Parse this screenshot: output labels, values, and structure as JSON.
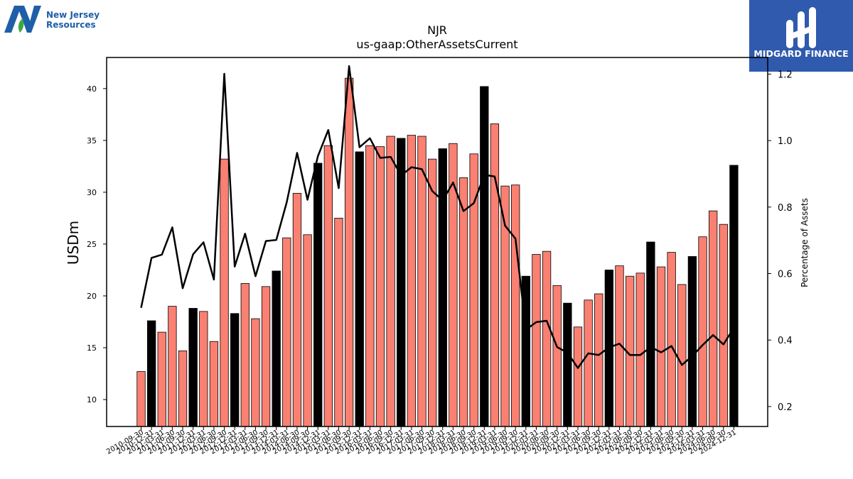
{
  "logos": {
    "left_line1": "New Jersey",
    "left_line2": "Resources",
    "right_text": "MIDGARD FINANCE"
  },
  "colors": {
    "bar_default": "#fa8072",
    "bar_q4": "#000000",
    "line": "#000000",
    "left_logo_blue": "#1f5fa8",
    "right_logo_bg": "#2f5aad"
  },
  "chart_data": {
    "type": "bar",
    "title": "NJR",
    "subtitle": "us-gaap:OtherAssetsCurrent",
    "ylabel": "USDm",
    "y2label": "Percentage of Assets",
    "ylim": [
      7.4,
      43.0
    ],
    "y2lim": [
      0.14,
      1.25
    ],
    "yticks": [
      10,
      15,
      20,
      25,
      30,
      35,
      40
    ],
    "y2ticks": [
      0.2,
      0.4,
      0.6,
      0.8,
      1.0,
      1.2
    ],
    "grid": false,
    "categories": [
      "2010-09-30",
      "2010-12-31",
      "2011-03-31",
      "2011-06-30",
      "2011-09-30",
      "2011-12-31",
      "2012-03-31",
      "2012-06-30",
      "2012-09-30",
      "2012-12-31",
      "2013-03-31",
      "2013-06-30",
      "2013-09-30",
      "2013-12-31",
      "2014-03-31",
      "2014-06-30",
      "2014-09-30",
      "2014-12-31",
      "2015-03-31",
      "2015-06-30",
      "2015-09-30",
      "2015-12-31",
      "2016-03-31",
      "2016-06-30",
      "2016-09-30",
      "2016-12-31",
      "2017-03-31",
      "2017-06-30",
      "2017-09-30",
      "2017-12-31",
      "2018-03-31",
      "2018-06-30",
      "2018-09-30",
      "2018-12-31",
      "2019-03-31",
      "2019-06-30",
      "2019-09-30",
      "2019-12-31",
      "2020-03-31",
      "2020-06-30",
      "2020-09-30",
      "2020-12-31",
      "2021-03-31",
      "2021-06-30",
      "2021-09-30",
      "2021-12-31",
      "2022-03-31",
      "2022-06-30",
      "2022-09-30",
      "2022-12-31",
      "2023-03-31",
      "2023-06-30",
      "2023-09-30",
      "2023-12-31",
      "2024-03-31",
      "2024-06-30",
      "2024-09-30",
      "2024-12-31"
    ],
    "series": [
      {
        "values": [
          12.7,
          17.6,
          16.5,
          19.0,
          14.7,
          18.8,
          18.5,
          15.6,
          33.2,
          18.3,
          21.2,
          17.8,
          20.9,
          22.4,
          25.6,
          29.9,
          25.9,
          32.8,
          34.5,
          27.5,
          41.0,
          33.9,
          34.5,
          34.4,
          35.4,
          35.2,
          35.5,
          35.4,
          33.2,
          34.2,
          34.7,
          31.4,
          33.7,
          40.2,
          36.6,
          30.6,
          30.7,
          21.9,
          24.0,
          24.3,
          21.0,
          19.3,
          17.0,
          19.6,
          20.2,
          22.5,
          22.9,
          21.9,
          22.2,
          25.2,
          22.8,
          24.2,
          21.1,
          23.8,
          25.7,
          28.2,
          26.9,
          32.6
        ],
        "highlight": [
          false,
          true,
          false,
          false,
          false,
          true,
          false,
          false,
          false,
          true,
          false,
          false,
          false,
          true,
          false,
          false,
          false,
          true,
          false,
          false,
          false,
          true,
          false,
          false,
          false,
          true,
          false,
          false,
          false,
          true,
          false,
          false,
          false,
          true,
          false,
          false,
          false,
          true,
          false,
          false,
          false,
          true,
          false,
          false,
          false,
          true,
          false,
          false,
          false,
          true,
          false,
          false,
          false,
          true,
          false,
          false,
          false,
          true
        ]
      },
      {
        "axis": "right",
        "values": [
          0.497,
          0.647,
          0.657,
          0.739,
          0.556,
          0.658,
          0.694,
          0.582,
          1.201,
          0.621,
          0.72,
          0.592,
          0.698,
          0.701,
          0.814,
          0.963,
          0.822,
          0.953,
          1.032,
          0.857,
          1.224,
          0.98,
          1.007,
          0.948,
          0.951,
          0.895,
          0.92,
          0.914,
          0.848,
          0.82,
          0.874,
          0.788,
          0.812,
          0.897,
          0.892,
          0.744,
          0.705,
          0.431,
          0.454,
          0.458,
          0.379,
          0.362,
          0.316,
          0.36,
          0.355,
          0.378,
          0.389,
          0.355,
          0.355,
          0.379,
          0.363,
          0.382,
          0.325,
          0.352,
          0.385,
          0.415,
          0.387,
          0.437
        ]
      }
    ]
  }
}
